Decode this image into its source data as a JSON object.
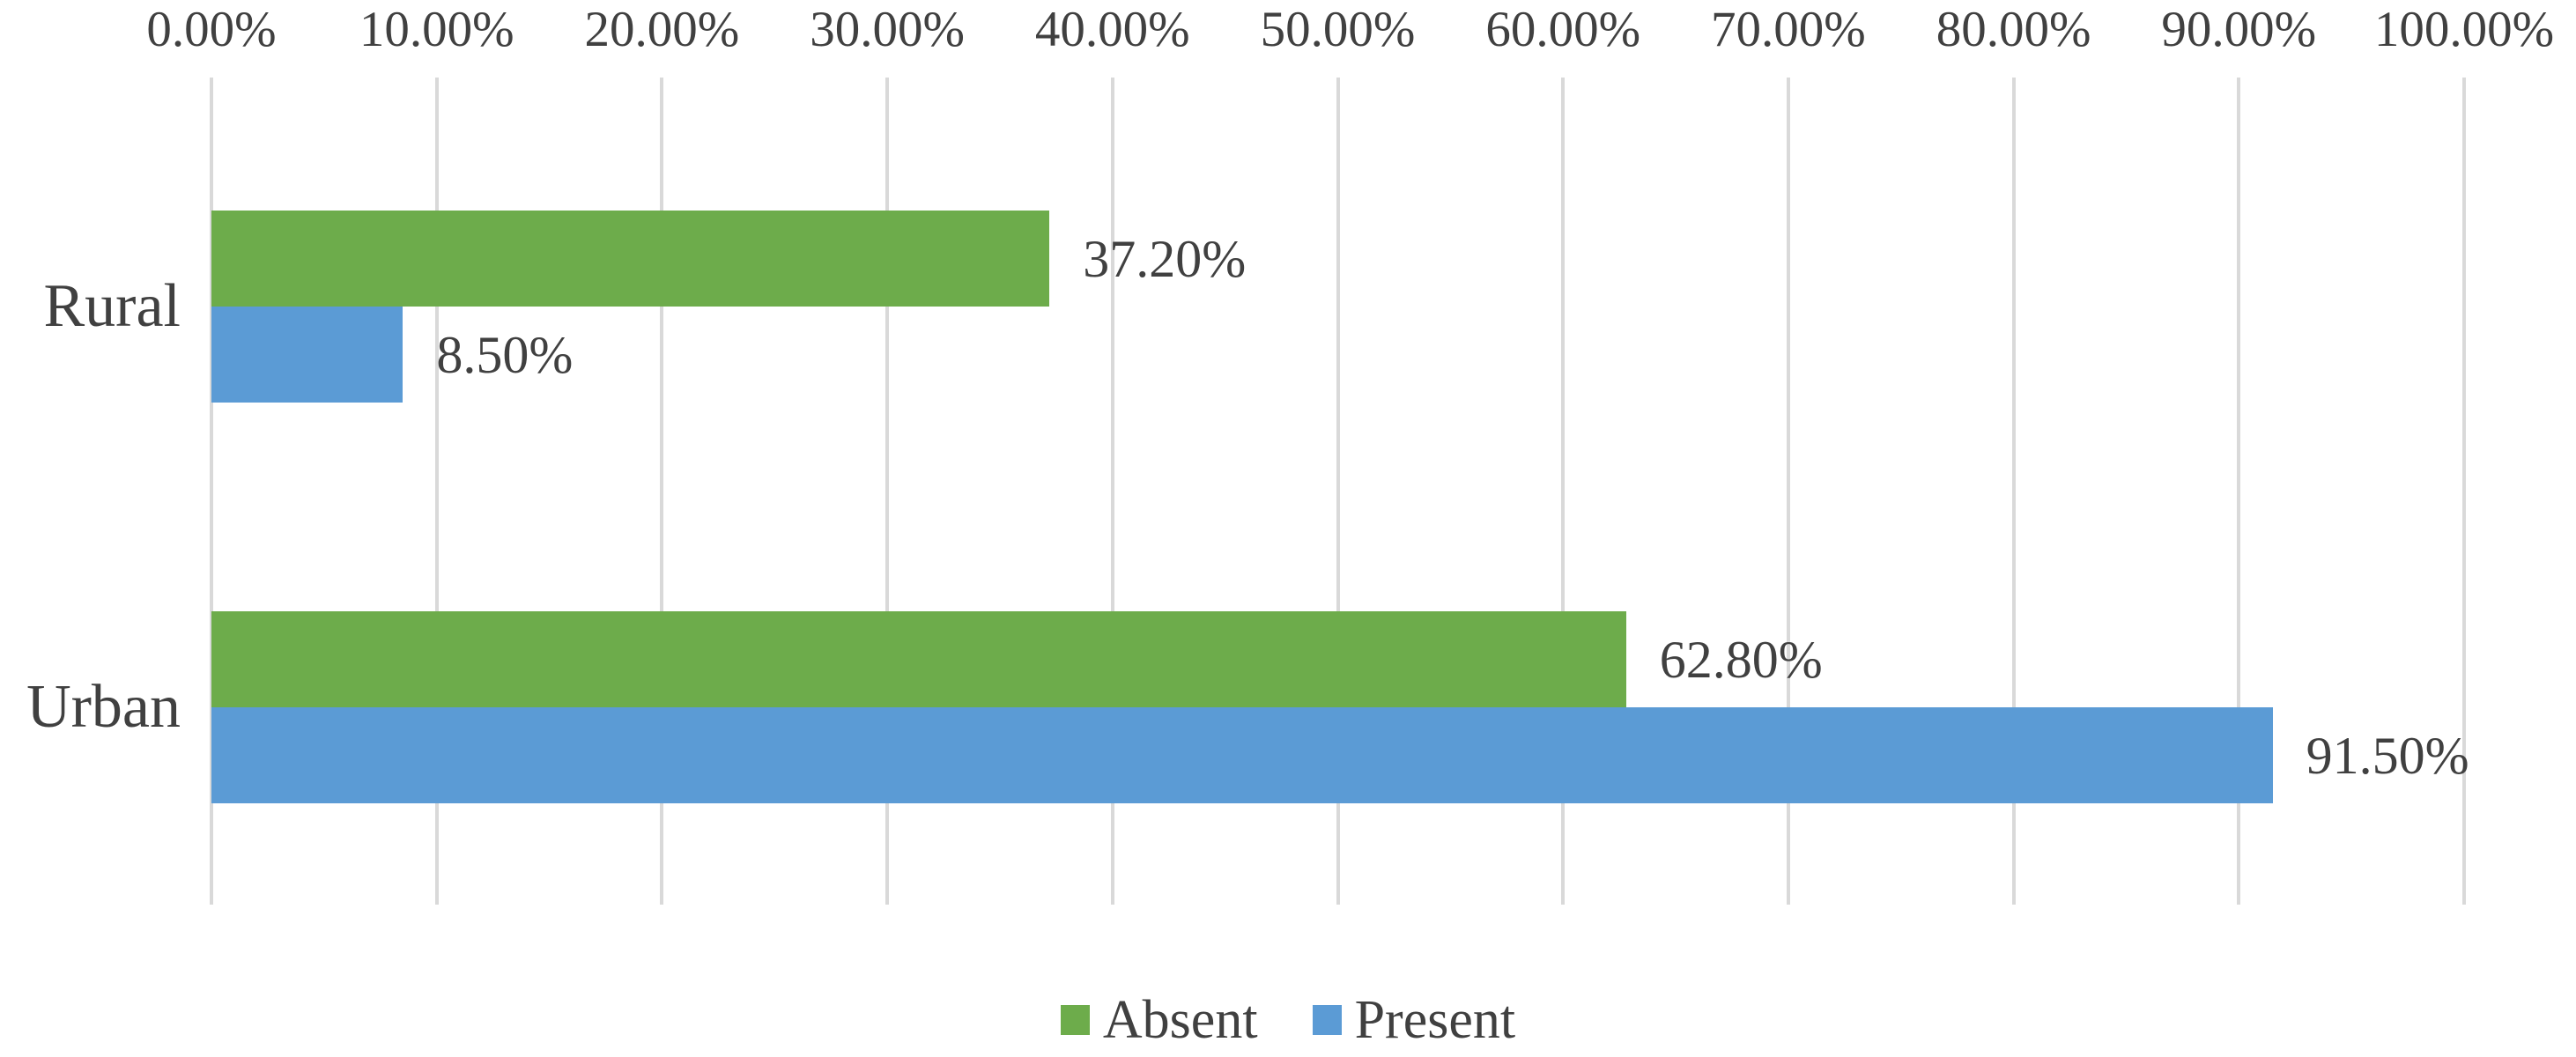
{
  "chart_data": {
    "type": "bar",
    "orientation": "horizontal",
    "title": "",
    "xlabel": "",
    "ylabel": "",
    "axis_position": "top",
    "xlim": [
      0,
      100
    ],
    "tick_step": 10,
    "tick_labels": [
      "0.00%",
      "10.00%",
      "20.00%",
      "30.00%",
      "40.00%",
      "50.00%",
      "60.00%",
      "70.00%",
      "80.00%",
      "90.00%",
      "100.00%"
    ],
    "grid": "vertical",
    "categories": [
      "Rural",
      "Urban"
    ],
    "series": [
      {
        "name": "Absent",
        "color": "#6DAC4B",
        "values": [
          37.2,
          62.8
        ],
        "data_labels": [
          "37.20%",
          "62.80%"
        ]
      },
      {
        "name": "Present",
        "color": "#5B9BD5",
        "values": [
          8.5,
          91.5
        ],
        "data_labels": [
          "8.50%",
          "91.50%"
        ]
      }
    ],
    "legend": {
      "position": "bottom",
      "entries": [
        "Absent",
        "Present"
      ]
    },
    "colors": {
      "text": "#404040",
      "gridline": "#D9D9D9",
      "background": "#FFFFFF",
      "absent": "#6DAC4B",
      "present": "#5B9BD5"
    }
  }
}
